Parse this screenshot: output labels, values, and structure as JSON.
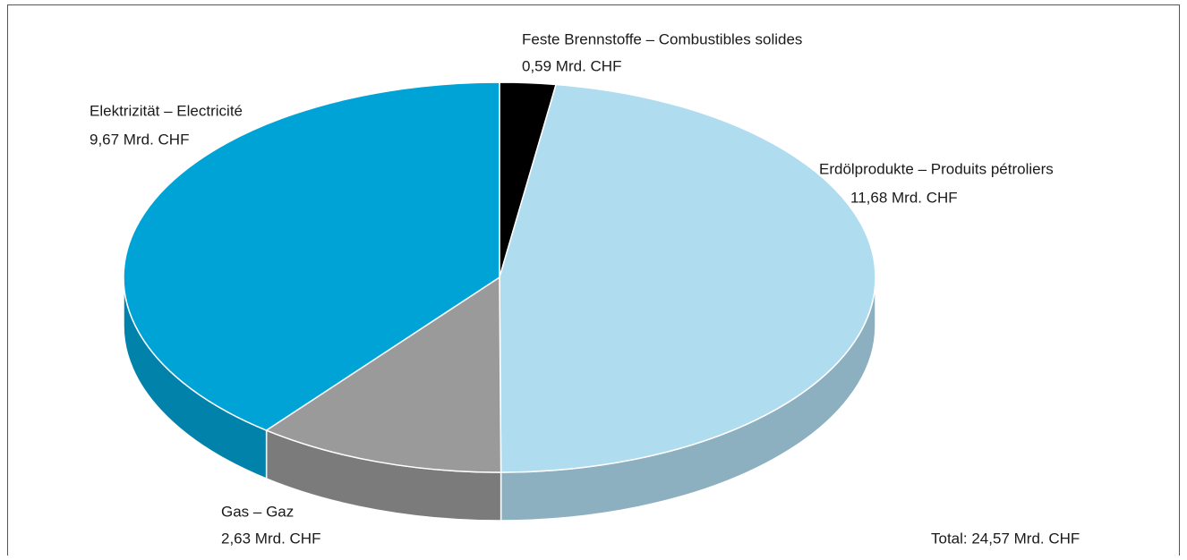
{
  "chart_data": {
    "type": "pie",
    "categories": [
      "Feste Brennstoffe – Combustibles solides",
      "Erdölprodukte – Produits pétroliers",
      "Gas – Gaz",
      "Elektrizität – Electricité"
    ],
    "values": [
      0.59,
      11.68,
      2.63,
      9.67
    ],
    "value_labels": [
      "0,59 Mrd. CHF",
      "11,68 Mrd. CHF",
      "2,63 Mrd. CHF",
      "9,67 Mrd. CHF"
    ],
    "colors": [
      "#000000",
      "#b0dcf0",
      "#9a9a9a",
      "#00a3d6"
    ],
    "annotation": "Total: 24,57 Mrd. CHF"
  }
}
